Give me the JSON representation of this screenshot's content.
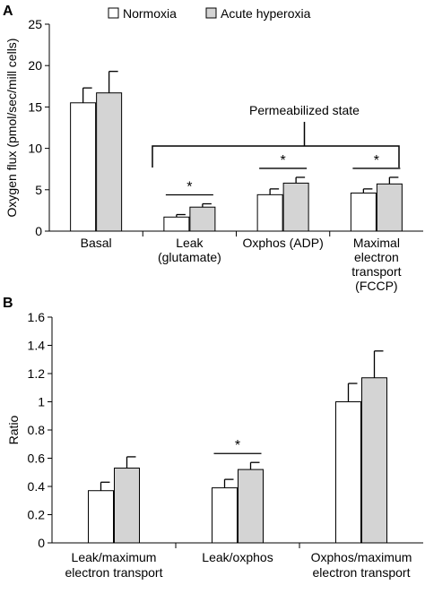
{
  "legend": {
    "normoxia": "Normoxia",
    "hyperoxia": "Acute hyperoxia"
  },
  "colors": {
    "normoxia": "#ffffff",
    "hyperoxia": "#d4d4d4",
    "stroke": "#000000"
  },
  "chart_data": [
    {
      "panel": "A",
      "type": "bar",
      "ylabel": "Oxygen flux (pmol/sec/mill cells)",
      "ylim": [
        0,
        25
      ],
      "yticks": [
        "0",
        "5",
        "10",
        "15",
        "20",
        "25"
      ],
      "categories": [
        [
          "Basal"
        ],
        [
          "Leak",
          "(glutamate)"
        ],
        [
          "Oxphos (ADP)"
        ],
        [
          "Maximal",
          "electron",
          "transport",
          "(FCCP)"
        ]
      ],
      "series": [
        {
          "name": "Normoxia",
          "values": [
            15.5,
            1.7,
            4.4,
            4.6
          ],
          "errors": [
            1.8,
            0.3,
            0.7,
            0.5
          ]
        },
        {
          "name": "Acute hyperoxia",
          "values": [
            16.7,
            2.9,
            5.8,
            5.7
          ],
          "errors": [
            2.6,
            0.4,
            0.7,
            0.8
          ]
        }
      ],
      "significance": [
        "",
        "*",
        "*",
        "*"
      ],
      "bracket_label": "Permeabilized state"
    },
    {
      "panel": "B",
      "type": "bar",
      "ylabel": "Ratio",
      "ylim": [
        0,
        1.6
      ],
      "yticks": [
        "0",
        "0.2",
        "0.4",
        "0.6",
        "0.8",
        "1",
        "1.2",
        "1.4",
        "1.6"
      ],
      "categories": [
        [
          "Leak/maximum",
          "electron  transport"
        ],
        [
          "Leak/oxphos"
        ],
        [
          "Oxphos/maximum",
          "electron transport"
        ]
      ],
      "series": [
        {
          "name": "Normoxia",
          "values": [
            0.37,
            0.39,
            1.0
          ],
          "errors": [
            0.06,
            0.06,
            0.13
          ]
        },
        {
          "name": "Acute hyperoxia",
          "values": [
            0.53,
            0.52,
            1.17
          ],
          "errors": [
            0.08,
            0.05,
            0.19
          ]
        }
      ],
      "significance": [
        "",
        "*",
        ""
      ]
    }
  ]
}
